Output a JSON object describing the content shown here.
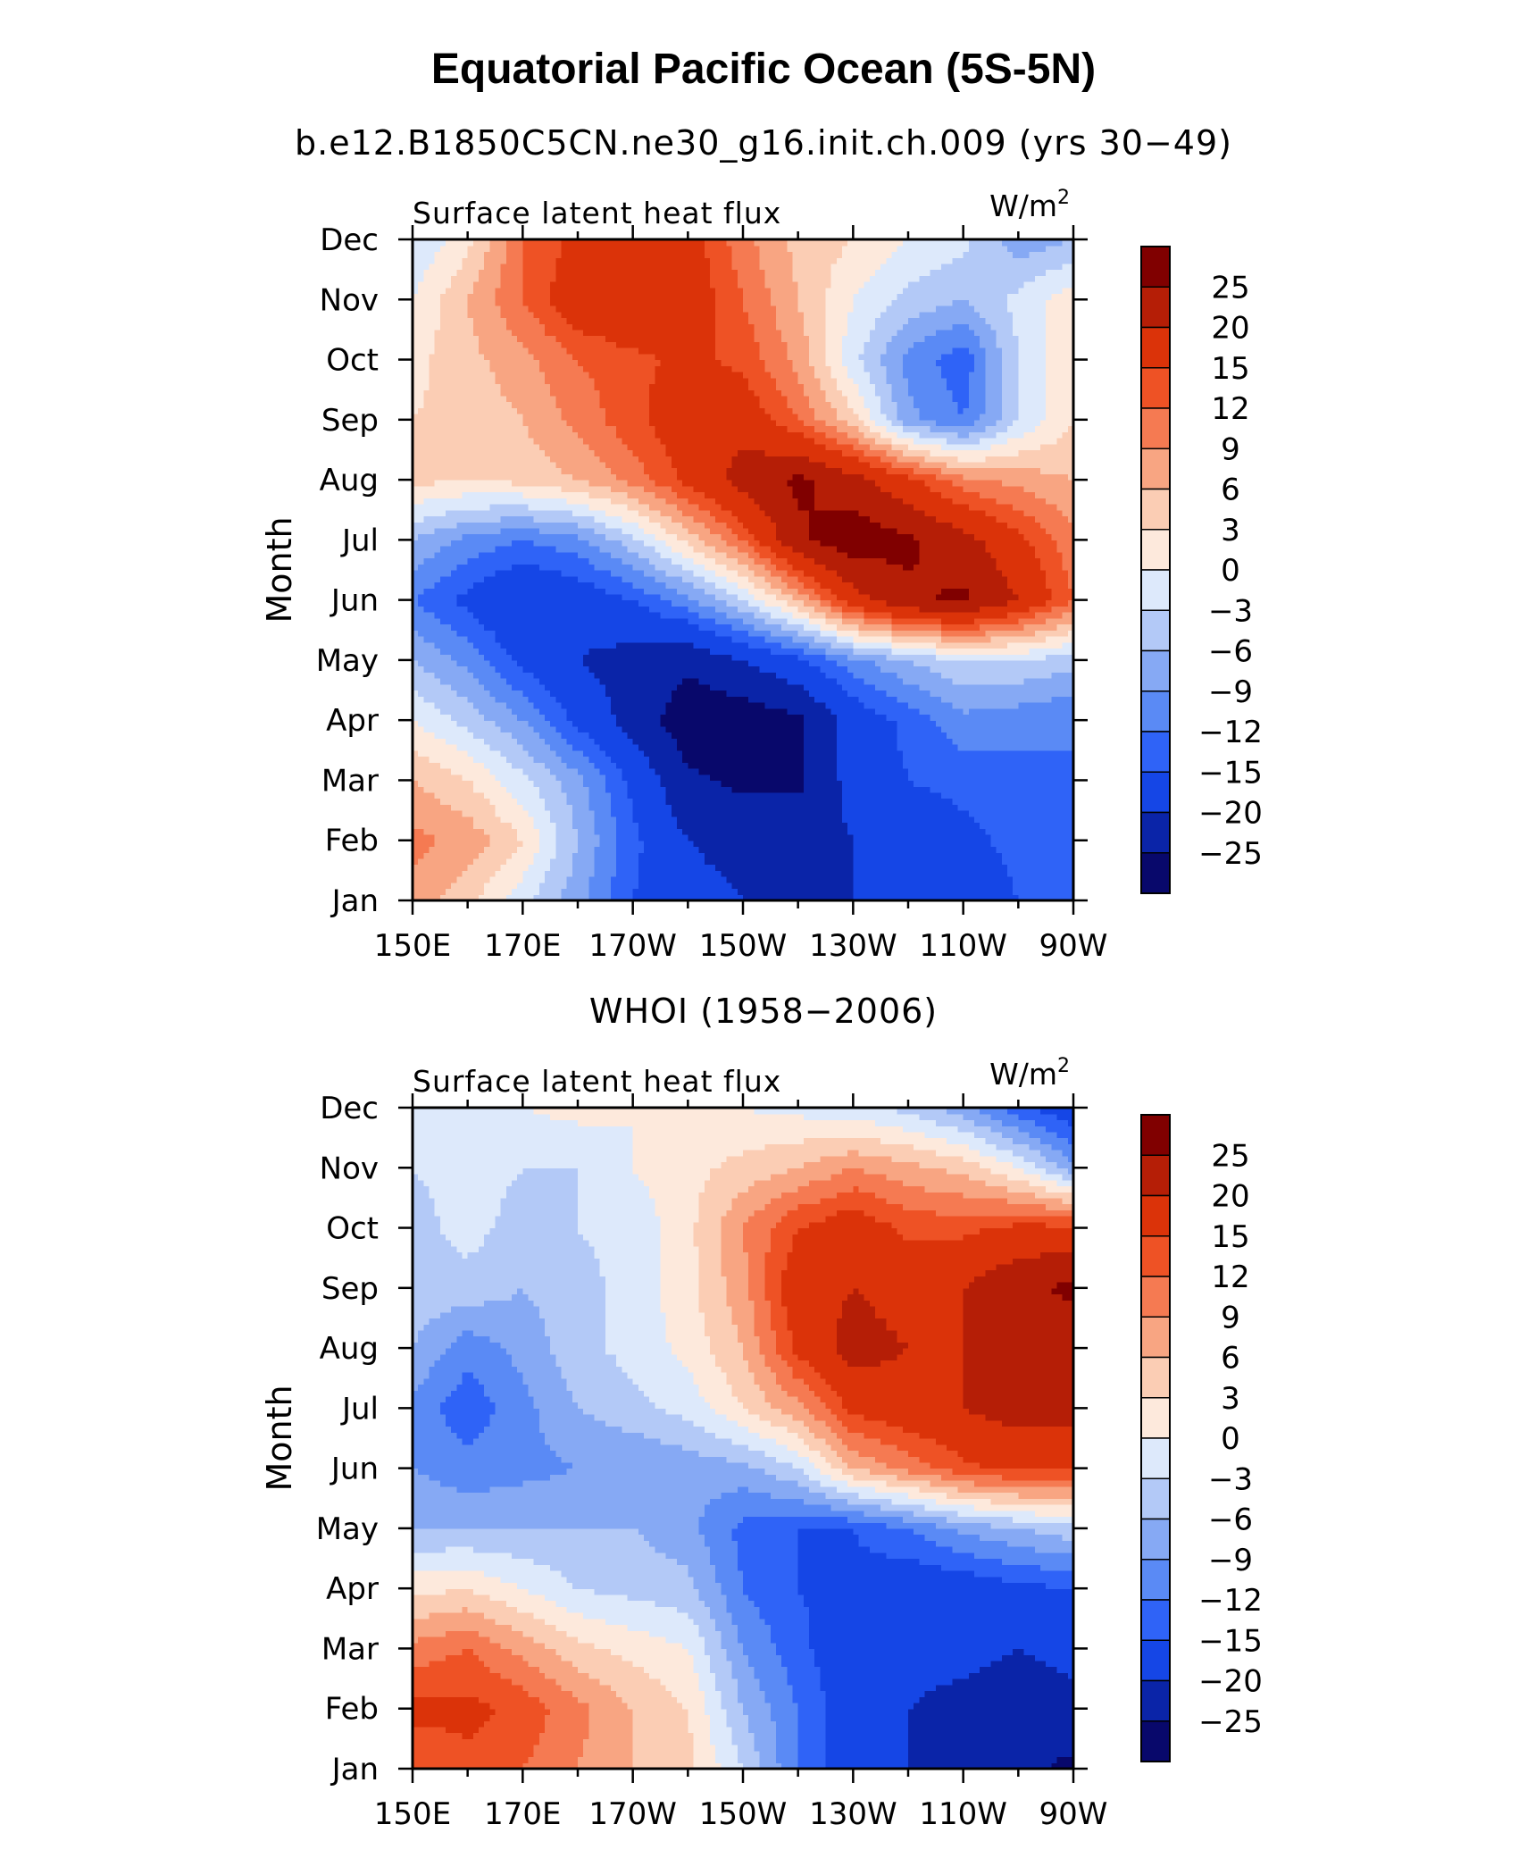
{
  "figure": {
    "title": "Equatorial Pacific Ocean (5S-5N)",
    "panel1_title": "b.e12.B1850C5CN.ne30_g16.init.ch.009 (yrs 30−49)",
    "panel2_title": "WHOI (1958−2006)"
  },
  "colors": {
    "levels": [
      -25,
      -20,
      -15,
      -12,
      -9,
      -6,
      -3,
      0,
      3,
      6,
      9,
      12,
      15,
      20,
      25
    ],
    "palette": [
      "#08086b",
      "#0a24a8",
      "#1546e6",
      "#2f63f7",
      "#5a8af5",
      "#86a9f4",
      "#b3c9f7",
      "#dde9fb",
      "#fde9dc",
      "#fbcdb4",
      "#f8a582",
      "#f57a52",
      "#ee5225",
      "#db3309",
      "#b51e06",
      "#800000"
    ]
  },
  "chart_data": [
    {
      "type": "heatmap",
      "subtype": "filled-contour (Hovmoller)",
      "panel_title": "b.e12.B1850C5CN.ne30_g16.init.ch.009 (yrs 30−49)",
      "left_label": "Surface latent heat flux",
      "units_base": "W/m",
      "units_exp": "2",
      "ylabel": "Month",
      "x_tick_labels": [
        "150E",
        "170E",
        "170W",
        "150W",
        "130W",
        "110W",
        "90W"
      ],
      "y_tick_labels": [
        "Jan",
        "Feb",
        "Mar",
        "Apr",
        "May",
        "Jun",
        "Jul",
        "Aug",
        "Sep",
        "Oct",
        "Nov",
        "Dec"
      ],
      "x_range_deg_east": [
        150,
        270
      ],
      "colorbar_labels": [
        "25",
        "20",
        "15",
        "12",
        "9",
        "6",
        "3",
        "0",
        "−3",
        "−6",
        "−9",
        "−12",
        "−15",
        "−20",
        "−25"
      ],
      "x_longitudes": [
        150,
        160,
        170,
        180,
        190,
        200,
        210,
        220,
        230,
        240,
        250,
        260,
        270
      ],
      "grid_values": {
        "Jan": [
          8,
          4,
          -2,
          -8,
          -15,
          -18,
          -20,
          -20,
          -20,
          -18,
          -18,
          -15,
          -12
        ],
        "Feb": [
          10,
          8,
          3,
          -6,
          -14,
          -20,
          -22,
          -22,
          -20,
          -18,
          -16,
          -14,
          -12
        ],
        "Mar": [
          6,
          3,
          -2,
          -8,
          -16,
          -24,
          -26,
          -26,
          -18,
          -15,
          -14,
          -13,
          -12
        ],
        "Apr": [
          0,
          -4,
          -9,
          -16,
          -22,
          -28,
          -28,
          -26,
          -18,
          -14,
          -10,
          -11,
          -12
        ],
        "May": [
          -6,
          -10,
          -16,
          -20,
          -22,
          -24,
          -20,
          -16,
          -10,
          -6,
          -3,
          -3,
          -5
        ],
        "Jun": [
          -12,
          -16,
          -20,
          -18,
          -15,
          -10,
          -3,
          6,
          18,
          24,
          26,
          20,
          12
        ],
        "Jul": [
          -6,
          -10,
          -12,
          -10,
          -4,
          4,
          12,
          24,
          28,
          26,
          22,
          16,
          10
        ],
        "Aug": [
          4,
          3,
          4,
          6,
          10,
          16,
          22,
          26,
          22,
          16,
          10,
          8,
          6
        ],
        "Sep": [
          3,
          4,
          6,
          10,
          14,
          18,
          18,
          12,
          4,
          -8,
          -12,
          -3,
          3
        ],
        "Oct": [
          2,
          5,
          8,
          12,
          14,
          16,
          14,
          8,
          -2,
          -10,
          -14,
          -3,
          3
        ],
        "Nov": [
          0,
          6,
          12,
          18,
          20,
          18,
          12,
          6,
          0,
          -4,
          -6,
          -2,
          2
        ],
        "Dec": [
          -3,
          2,
          12,
          16,
          20,
          17,
          10,
          5,
          3,
          0,
          -2,
          -8,
          -6
        ]
      }
    },
    {
      "type": "heatmap",
      "subtype": "filled-contour (Hovmoller)",
      "panel_title": "WHOI (1958−2006)",
      "left_label": "Surface latent heat flux",
      "units_base": "W/m",
      "units_exp": "2",
      "ylabel": "Month",
      "x_tick_labels": [
        "150E",
        "170E",
        "170W",
        "150W",
        "130W",
        "110W",
        "90W"
      ],
      "y_tick_labels": [
        "Jan",
        "Feb",
        "Mar",
        "Apr",
        "May",
        "Jun",
        "Jul",
        "Aug",
        "Sep",
        "Oct",
        "Nov",
        "Dec"
      ],
      "x_range_deg_east": [
        150,
        270
      ],
      "colorbar_labels": [
        "25",
        "20",
        "15",
        "12",
        "9",
        "6",
        "3",
        "0",
        "−3",
        "−6",
        "−9",
        "−12",
        "−15",
        "−20",
        "−25"
      ],
      "x_longitudes": [
        150,
        160,
        170,
        180,
        190,
        200,
        210,
        220,
        230,
        240,
        250,
        260,
        270
      ],
      "grid_values": {
        "Jan": [
          12,
          14,
          12,
          9,
          6,
          4,
          -3,
          -12,
          -18,
          -20,
          -22,
          -24,
          -26
        ],
        "Feb": [
          16,
          16,
          14,
          10,
          6,
          3,
          -6,
          -12,
          -18,
          -20,
          -22,
          -24,
          -22
        ],
        "Mar": [
          10,
          12,
          8,
          4,
          2,
          0,
          -9,
          -14,
          -18,
          -18,
          -18,
          -20,
          -18
        ],
        "Apr": [
          2,
          3,
          0,
          -3,
          -4,
          -5,
          -12,
          -15,
          -16,
          -18,
          -18,
          -16,
          -15
        ],
        "May": [
          -6,
          -6,
          -6,
          -6,
          -6,
          -8,
          -13,
          -15,
          -15,
          -12,
          -8,
          -6,
          -4
        ],
        "Jun": [
          -9,
          -11,
          -10,
          -9,
          -9,
          -8,
          -7,
          -3,
          6,
          10,
          14,
          16,
          16
        ],
        "Jul": [
          -10,
          -14,
          -10,
          -6,
          -4,
          -2,
          3,
          8,
          16,
          18,
          20,
          22,
          22
        ],
        "Aug": [
          -6,
          -11,
          -8,
          -4,
          -2,
          1,
          6,
          16,
          22,
          20,
          20,
          22,
          22
        ],
        "Sep": [
          -4,
          -4,
          -6,
          -4,
          -2,
          2,
          8,
          18,
          20,
          18,
          20,
          24,
          26
        ],
        "Oct": [
          -4,
          -2,
          -4,
          -3,
          -2,
          2,
          9,
          15,
          18,
          14,
          14,
          16,
          16
        ],
        "Nov": [
          -3,
          -2,
          -3,
          -3,
          0,
          2,
          4,
          6,
          9,
          7,
          5,
          0,
          -8
        ],
        "Dec": [
          -2,
          -1,
          0,
          1,
          0,
          1,
          0,
          -1,
          -2,
          -4,
          -8,
          -14,
          -18
        ]
      }
    }
  ]
}
